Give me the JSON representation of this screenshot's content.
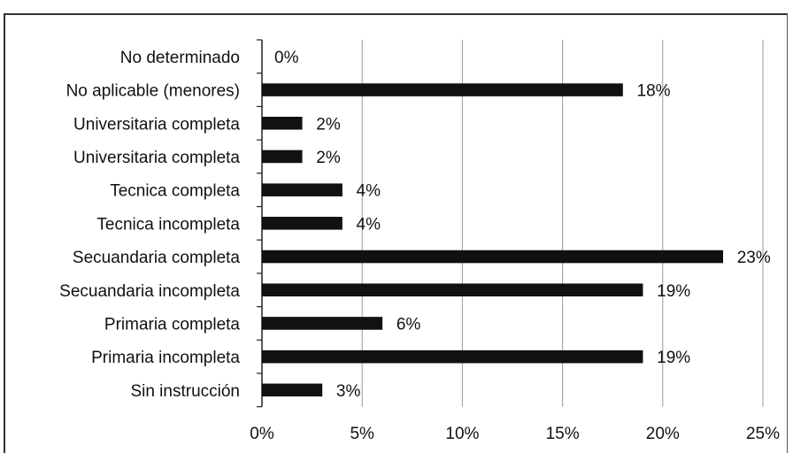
{
  "chart_data": {
    "type": "bar",
    "orientation": "horizontal",
    "categories": [
      "No determinado",
      "No aplicable (menores)",
      "Universitaria completa",
      "Universitaria completa",
      "Tecnica completa",
      "Tecnica incompleta",
      "Secuandaria completa",
      "Secuandaria incompleta",
      "Primaria completa",
      "Primaria incompleta",
      "Sin instrucción"
    ],
    "values": [
      0,
      18,
      2,
      2,
      4,
      4,
      23,
      19,
      6,
      19,
      3
    ],
    "data_labels": [
      "0%",
      "18%",
      "2%",
      "2%",
      "4%",
      "4%",
      "23%",
      "19%",
      "6%",
      "19%",
      "3%"
    ],
    "xlim": [
      0,
      25
    ],
    "x_ticks": [
      0,
      5,
      10,
      15,
      20,
      25
    ],
    "x_tick_labels": [
      "0%",
      "5%",
      "10%",
      "15%",
      "20%",
      "25%"
    ],
    "grid": true,
    "legend": "none",
    "bar_color": "#111111",
    "grid_color": "#9a9a9a"
  }
}
